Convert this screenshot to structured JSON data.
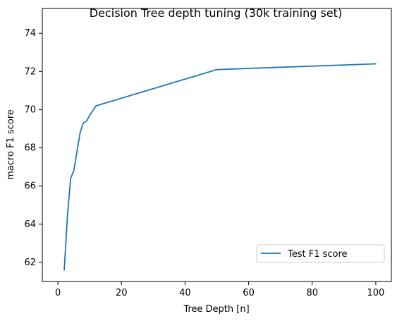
{
  "chart_data": {
    "type": "line",
    "title": "Decision Tree depth tuning (30k training set)",
    "xlabel": "Tree Depth [n]",
    "ylabel": "macro F1 score",
    "xlim": [
      -4.9,
      104.9
    ],
    "ylim": [
      61.0,
      75.3
    ],
    "xticks": [
      0,
      20,
      40,
      60,
      80,
      100
    ],
    "yticks": [
      62,
      64,
      66,
      68,
      70,
      72,
      74
    ],
    "grid": false,
    "legend_position": "lower-right",
    "series": [
      {
        "name": "Test F1 score",
        "color": "#1f77b4",
        "x": [
          2,
          3,
          4,
          5,
          6,
          7,
          8,
          9,
          10,
          11,
          12,
          50,
          100
        ],
        "y": [
          61.6,
          64.4,
          66.4,
          66.8,
          67.8,
          68.8,
          69.3,
          69.4,
          69.7,
          69.95,
          70.2,
          72.1,
          72.4
        ]
      }
    ]
  }
}
